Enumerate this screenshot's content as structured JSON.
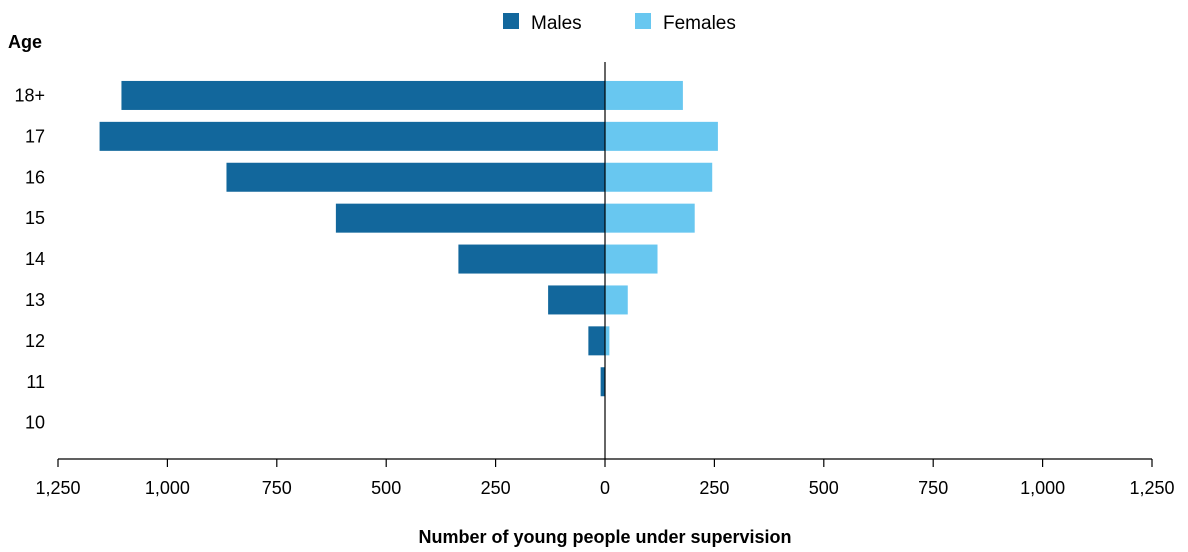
{
  "chart_data": {
    "type": "bar",
    "orientation": "horizontal-population-pyramid",
    "categories": [
      "18+",
      "17",
      "16",
      "15",
      "14",
      "13",
      "12",
      "11",
      "10"
    ],
    "series": [
      {
        "name": "Males",
        "color": "#12679C",
        "values": [
          1105,
          1155,
          865,
          615,
          335,
          130,
          38,
          10,
          0
        ]
      },
      {
        "name": "Females",
        "color": "#68C7F0",
        "values": [
          178,
          258,
          245,
          205,
          120,
          52,
          10,
          0,
          0
        ]
      }
    ],
    "ylabel": "Age",
    "xlabel": "Number of young people under supervision",
    "xlim": [
      -1250,
      1250
    ],
    "xticks": [
      -1250,
      -1000,
      -750,
      -500,
      -250,
      0,
      250,
      500,
      750,
      1000,
      1250
    ],
    "xtick_labels": [
      "1,250",
      "1,000",
      "750",
      "500",
      "250",
      "0",
      "250",
      "500",
      "750",
      "1,000",
      "1,250"
    ],
    "legend_position": "top-center",
    "grid": false
  }
}
